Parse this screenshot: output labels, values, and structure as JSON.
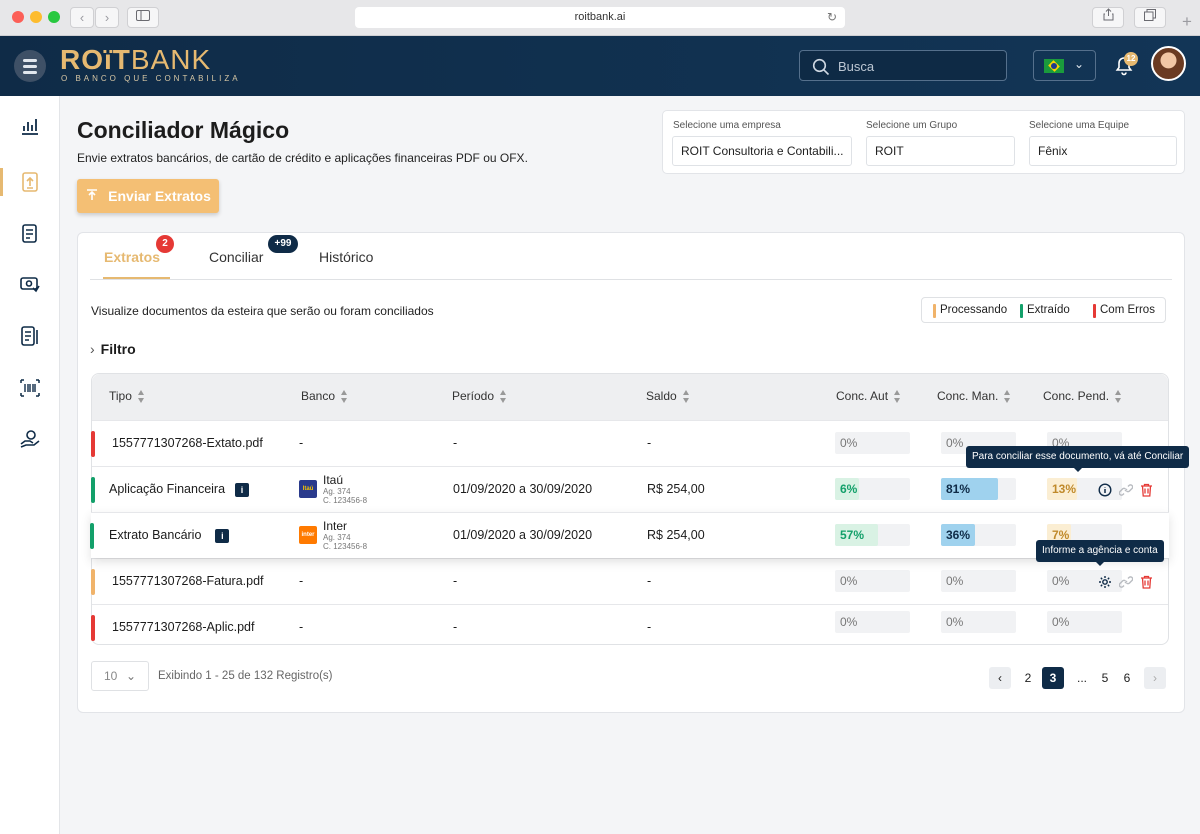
{
  "browser": {
    "url": "roitbank.ai",
    "back_glyph": "‹",
    "forward_glyph": "›",
    "reload_glyph": "↻",
    "plus_glyph": "+"
  },
  "header": {
    "logo_bold": "ROïT",
    "logo_light": "BANK",
    "tagline": "O BANCO QUE CONTABILIZA",
    "search_placeholder": "Busca",
    "notification_count": "12",
    "lang_chevron": "⌄",
    "icons": [
      "menu-icon",
      "search-icon",
      "brazil-flag-icon",
      "chevron-down-icon",
      "bell-icon",
      "avatar"
    ]
  },
  "sidebar": {
    "items": [
      {
        "name": "sidebar-item-dashboard",
        "icon": "bar-chart-icon",
        "active": false
      },
      {
        "name": "sidebar-item-conciliador",
        "icon": "document-upload-icon",
        "active": true
      },
      {
        "name": "sidebar-item-ledger",
        "icon": "ledger-icon",
        "active": false
      },
      {
        "name": "sidebar-item-payments",
        "icon": "money-check-icon",
        "active": false
      },
      {
        "name": "sidebar-item-invoices",
        "icon": "receipt-icon",
        "active": false
      },
      {
        "name": "sidebar-item-barcode",
        "icon": "barcode-icon",
        "active": false
      },
      {
        "name": "sidebar-item-hand-money",
        "icon": "hand-coin-icon",
        "active": false
      }
    ]
  },
  "page": {
    "title": "Conciliador Mágico",
    "subtitle": "Envie extratos bancários, de cartão de crédito e aplicações financeiras PDF ou OFX.",
    "upload_label": "Enviar Extratos"
  },
  "selectors": {
    "empresa": {
      "label": "Selecione uma empresa",
      "value": "ROIT Consultoria e Contabili..."
    },
    "grupo": {
      "label": "Selecione um Grupo",
      "value": "ROIT"
    },
    "equipe": {
      "label": "Selecione uma Equipe",
      "value": "Fênix"
    }
  },
  "tabs": [
    {
      "label": "Extratos",
      "badge": "2",
      "active": true
    },
    {
      "label": "Conciliar",
      "badge": "+99",
      "active": false
    },
    {
      "label": "Histórico",
      "badge": "",
      "active": false
    }
  ],
  "description": "Visualize documentos da esteira que serão ou foram conciliados",
  "legend": [
    {
      "label": "Processando",
      "color": "#f0b36a"
    },
    {
      "label": "Extraído",
      "color": "#13a06a"
    },
    {
      "label": "Com Erros",
      "color": "#e53935"
    }
  ],
  "filter_label": "Filtro",
  "filter_chevron": "›",
  "table": {
    "columns": [
      "Tipo",
      "Banco",
      "Período",
      "Saldo",
      "Conc. Aut",
      "Conc. Man.",
      "Conc. Pend."
    ],
    "info_glyph": "i",
    "rows": [
      {
        "status_color": "#e53935",
        "tipo": "1557771307268-Extato.pdf",
        "info": false,
        "banco": "-",
        "bank_logo": "",
        "ag": "",
        "cc": "",
        "periodo": "-",
        "saldo": "-",
        "aut": "0%",
        "man": "0%",
        "pend": "0%",
        "actions": false
      },
      {
        "status_color": "#13a06a",
        "tipo": "Aplicação Financeira",
        "info": true,
        "banco": "Itaú",
        "bank_logo": "Itaú",
        "ag": "Ag. 374",
        "cc": "C. 123456-8",
        "periodo": "01/09/2020 a 30/09/2020",
        "saldo": "R$ 254,00",
        "aut": "6%",
        "man": "81%",
        "pend": "13%",
        "actions": true
      },
      {
        "status_color": "#13a06a",
        "tipo": "Extrato Bancário",
        "info": true,
        "banco": "Inter",
        "bank_logo": "inter",
        "ag": "Ag. 374",
        "cc": "C. 123456-8",
        "periodo": "01/09/2020 a 30/09/2020",
        "saldo": "R$ 254,00",
        "aut": "57%",
        "man": "36%",
        "pend": "7%",
        "actions": false
      },
      {
        "status_color": "#f0b36a",
        "tipo": "1557771307268-Fatura.pdf",
        "info": false,
        "banco": "-",
        "bank_logo": "",
        "ag": "",
        "cc": "",
        "periodo": "-",
        "saldo": "-",
        "aut": "0%",
        "man": "0%",
        "pend": "0%",
        "actions": true
      },
      {
        "status_color": "#e53935",
        "tipo": "1557771307268-Aplic.pdf",
        "info": false,
        "banco": "-",
        "bank_logo": "",
        "ag": "",
        "cc": "",
        "periodo": "-",
        "saldo": "-",
        "aut": "0%",
        "man": "0%",
        "pend": "0%",
        "actions": false
      }
    ]
  },
  "tooltips": {
    "conciliar": "Para conciliar esse documento, vá até Conciliar",
    "agencia": "Informe a agência e conta"
  },
  "pagination": {
    "page_size": "10",
    "size_chevron": "⌄",
    "range_text": "Exibindo 1 - 25 de 132 Registro(s)",
    "prev_glyph": "‹",
    "next_glyph": "›",
    "pages": [
      "2",
      "3",
      "...",
      "5",
      "6"
    ],
    "current": "3"
  }
}
